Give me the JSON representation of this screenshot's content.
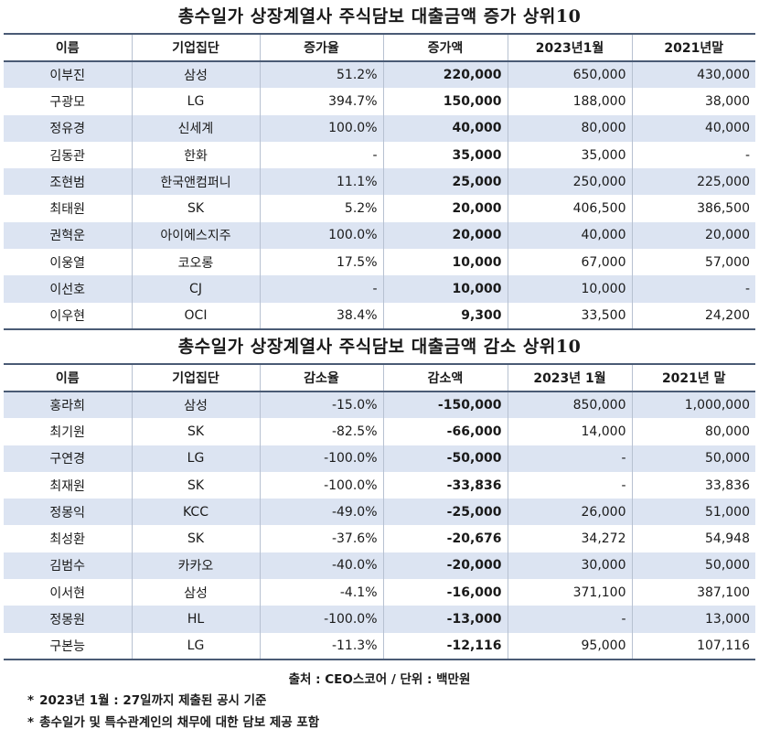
{
  "increase": {
    "title": "총수일가 상장계열사 주식담보 대출금액 증가 상위10",
    "headers": [
      "이름",
      "기업집단",
      "증가율",
      "증가액",
      "2023년1월",
      "2021년말"
    ],
    "rows": [
      [
        "이부진",
        "삼성",
        "51.2%",
        "220,000",
        "650,000",
        "430,000"
      ],
      [
        "구광모",
        "LG",
        "394.7%",
        "150,000",
        "188,000",
        "38,000"
      ],
      [
        "정유경",
        "신세계",
        "100.0%",
        "40,000",
        "80,000",
        "40,000"
      ],
      [
        "김동관",
        "한화",
        "-",
        "35,000",
        "35,000",
        "-"
      ],
      [
        "조현범",
        "한국앤컴퍼니",
        "11.1%",
        "25,000",
        "250,000",
        "225,000"
      ],
      [
        "최태원",
        "SK",
        "5.2%",
        "20,000",
        "406,500",
        "386,500"
      ],
      [
        "권혁운",
        "아이에스지주",
        "100.0%",
        "20,000",
        "40,000",
        "20,000"
      ],
      [
        "이웅열",
        "코오롱",
        "17.5%",
        "10,000",
        "67,000",
        "57,000"
      ],
      [
        "이선호",
        "CJ",
        "-",
        "10,000",
        "10,000",
        "-"
      ],
      [
        "이우현",
        "OCI",
        "38.4%",
        "9,300",
        "33,500",
        "24,200"
      ]
    ]
  },
  "decrease": {
    "title": "총수일가 상장계열사 주식담보 대출금액 감소 상위10",
    "headers": [
      "이름",
      "기업집단",
      "감소율",
      "감소액",
      "2023년 1월",
      "2021년 말"
    ],
    "rows": [
      [
        "홍라희",
        "삼성",
        "-15.0%",
        "-150,000",
        "850,000",
        "1,000,000"
      ],
      [
        "최기원",
        "SK",
        "-82.5%",
        "-66,000",
        "14,000",
        "80,000"
      ],
      [
        "구연경",
        "LG",
        "-100.0%",
        "-50,000",
        "-",
        "50,000"
      ],
      [
        "최재원",
        "SK",
        "-100.0%",
        "-33,836",
        "-",
        "33,836"
      ],
      [
        "정몽익",
        "KCC",
        "-49.0%",
        "-25,000",
        "26,000",
        "51,000"
      ],
      [
        "최성환",
        "SK",
        "-37.6%",
        "-20,676",
        "34,272",
        "54,948"
      ],
      [
        "김범수",
        "카카오",
        "-40.0%",
        "-20,000",
        "30,000",
        "50,000"
      ],
      [
        "이서현",
        "삼성",
        "-4.1%",
        "-16,000",
        "371,100",
        "387,100"
      ],
      [
        "정몽원",
        "HL",
        "-100.0%",
        "-13,000",
        "-",
        "13,000"
      ],
      [
        "구본능",
        "LG",
        "-11.3%",
        "-12,116",
        "95,000",
        "107,116"
      ]
    ]
  },
  "footer": {
    "source": "출처 : CEO스코어 / 단위 : 백만원",
    "notes": [
      "2023년 1월 : 27일까지 제출된 공시 기준",
      "총수일가 및 특수관계인의 채무에 대한 담보 제공 포함"
    ],
    "bullet": "*"
  }
}
